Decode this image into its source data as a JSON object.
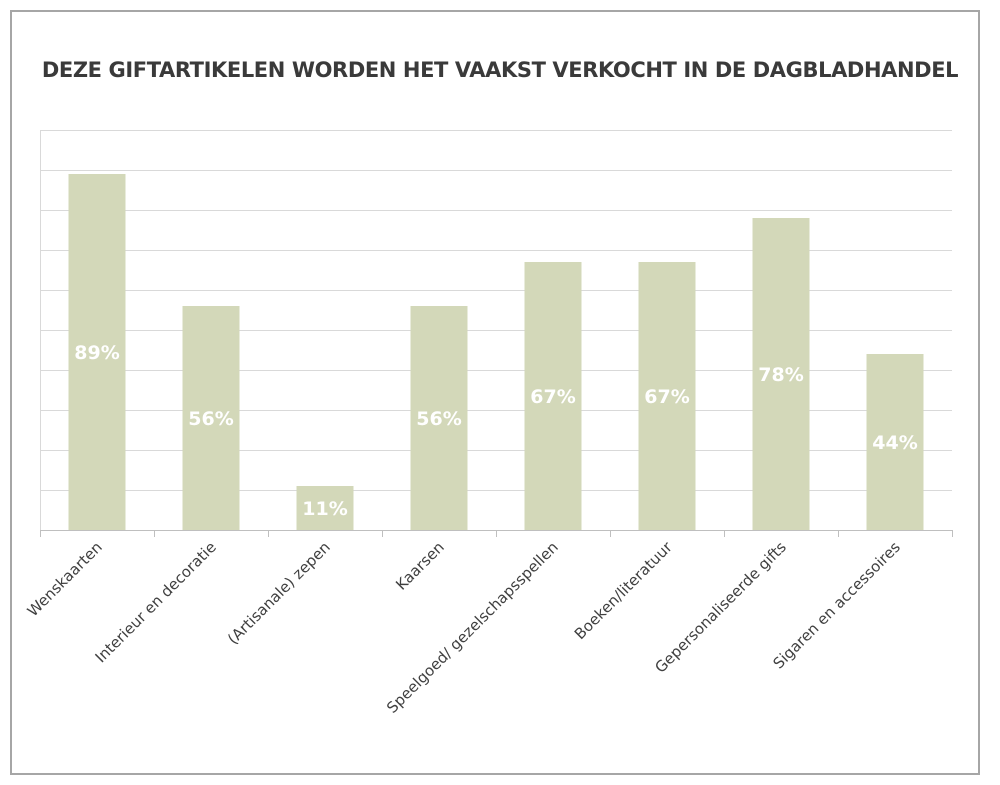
{
  "chart_data": {
    "type": "bar",
    "title": "DEZE GIFTARTIKELEN WORDEN HET VAAKST VERKOCHT IN DE DAGBLADHANDEL",
    "categories": [
      "Wenskaarten",
      "Interieur en decoratie",
      "(Artisanale) zepen",
      "Kaarsen",
      "Speelgoed/ gezelschapsspellen",
      "Boeken/literatuur",
      "Gepersonaliseerde gifts",
      "Sigaren en accessoires"
    ],
    "values": [
      89,
      56,
      11,
      56,
      67,
      67,
      78,
      44
    ],
    "value_labels": [
      "89%",
      "56%",
      "11%",
      "56%",
      "67%",
      "67%",
      "78%",
      "44%"
    ],
    "ylim": [
      0,
      100
    ],
    "grid": true,
    "bar_color": "#d3d8b9",
    "label_color": "#ffffff"
  }
}
